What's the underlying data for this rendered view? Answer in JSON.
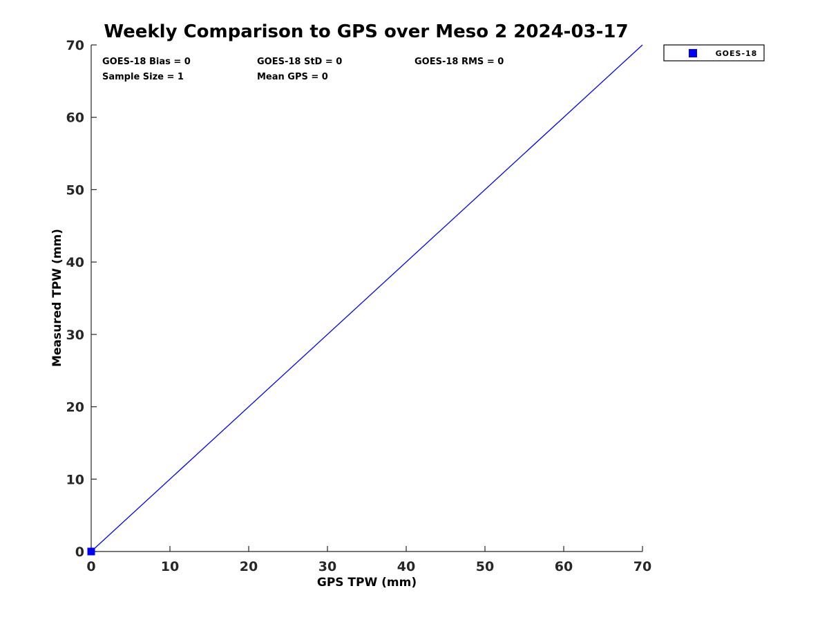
{
  "figure": {
    "background": "#ffffff"
  },
  "colors": {
    "series_blue": "#0000ff",
    "axis_color": "#262626",
    "text_color": "#000000",
    "legend_border": "#000000",
    "legend_background": "#ffffff"
  },
  "legend": {
    "label": "GOES-18",
    "marker": "square",
    "marker_color": "#0000ff",
    "position": "top-right-outside"
  },
  "chart_data": {
    "type": "scatter",
    "title": "Weekly Comparison to GPS over Meso 2 2024-03-17",
    "xlabel": "GPS TPW (mm)",
    "ylabel": "Measured TPW (mm)",
    "xlim": [
      0,
      70
    ],
    "ylim": [
      0,
      70
    ],
    "xticks": [
      0,
      10,
      20,
      30,
      40,
      50,
      60,
      70
    ],
    "yticks": [
      0,
      10,
      20,
      30,
      40,
      50,
      60,
      70
    ],
    "grid": false,
    "legend_position": "top-right-outside",
    "series": [
      {
        "name": "GOES-18",
        "type": "scatter",
        "marker": "square",
        "color": "#0000ff",
        "x": [
          0
        ],
        "y": [
          0
        ]
      },
      {
        "name": "identity-line",
        "type": "line",
        "color": "#0000ff",
        "x": [
          0,
          70
        ],
        "y": [
          0,
          70
        ]
      }
    ],
    "annotations": [
      {
        "text": "GOES-18 Bias = 0",
        "row": 1,
        "col": 1
      },
      {
        "text": "GOES-18 StD = 0",
        "row": 1,
        "col": 2
      },
      {
        "text": "GOES-18 RMS = 0",
        "row": 1,
        "col": 3
      },
      {
        "text": "Sample Size = 1",
        "row": 2,
        "col": 1
      },
      {
        "text": "Mean GPS = 0",
        "row": 2,
        "col": 2
      }
    ],
    "stats": {
      "bias": 0,
      "std": 0,
      "rms": 0,
      "sample_size": 1,
      "mean_gps": 0
    }
  }
}
